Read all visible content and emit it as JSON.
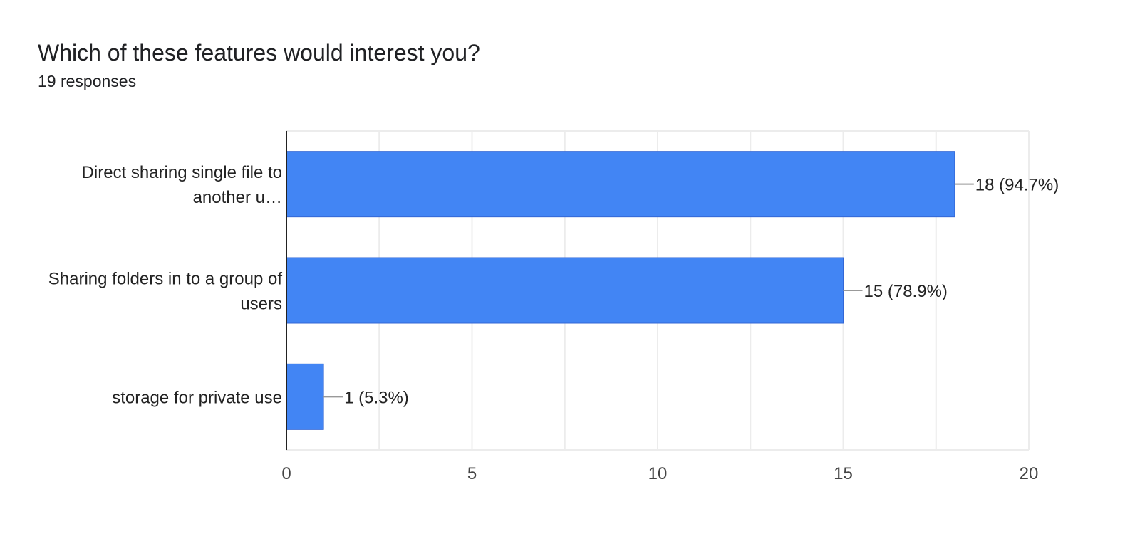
{
  "header": {
    "title": "Which of these features would interest you?",
    "subtitle": "19 responses"
  },
  "colors": {
    "bar": "#4285f4",
    "bar_edge": "#3367d6",
    "grid": "#ececec",
    "axis": "#222222",
    "leader": "#999999"
  },
  "chart_data": {
    "type": "bar",
    "orientation": "horizontal",
    "categories": [
      [
        "Direct sharing single file to",
        "another u…"
      ],
      [
        "Sharing folders in to a group of",
        "users"
      ],
      [
        "storage for private use"
      ]
    ],
    "values": [
      18,
      15,
      1
    ],
    "data_labels": [
      "18 (94.7%)",
      "15 (78.9%)",
      "1 (5.3%)"
    ],
    "xlim": [
      0,
      20
    ],
    "xticks": [
      0,
      5,
      10,
      15,
      20
    ],
    "grid": true
  }
}
